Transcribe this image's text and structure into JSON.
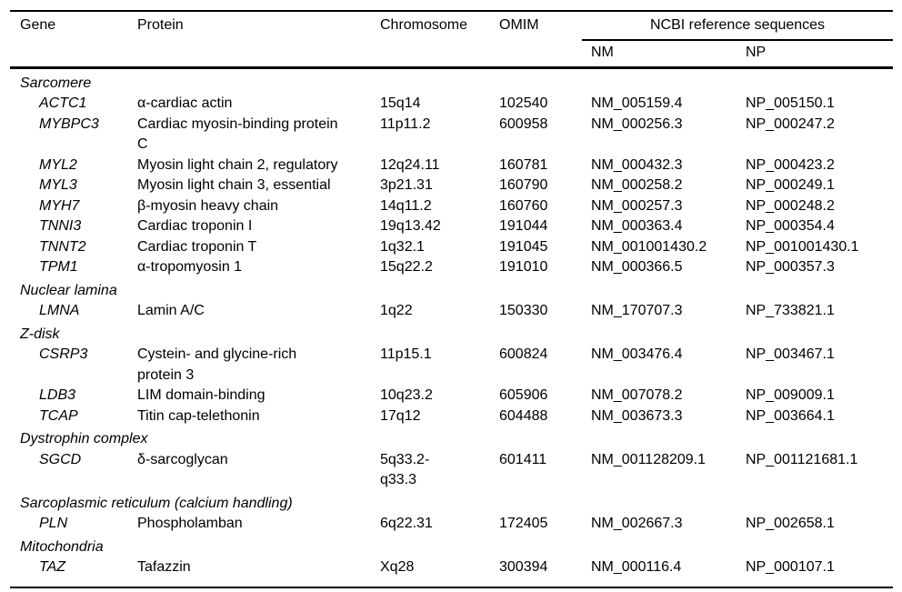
{
  "colors": {
    "text": "#000000",
    "background": "#ffffff",
    "rule": "#000000"
  },
  "table": {
    "headers": {
      "gene": "Gene",
      "protein": "Protein",
      "chromosome": "Chromosome",
      "omim": "OMIM",
      "ncbi_group": "NCBI reference sequences",
      "nm": "NM",
      "np": "NP"
    },
    "sections": [
      {
        "name": "Sarcomere",
        "rows": [
          {
            "gene": "ACTC1",
            "protein": "α-cardiac actin",
            "chromosome": "15q14",
            "omim": "102540",
            "nm": "NM_005159.4",
            "np": "NP_005150.1"
          },
          {
            "gene": "MYBPC3",
            "protein": "Cardiac myosin-binding protein\nC",
            "chromosome": "11p11.2",
            "omim": "600958",
            "nm": "NM_000256.3",
            "np": "NP_000247.2"
          },
          {
            "gene": "MYL2",
            "protein": "Myosin light chain 2, regulatory",
            "chromosome": "12q24.11",
            "omim": "160781",
            "nm": "NM_000432.3",
            "np": "NP_000423.2"
          },
          {
            "gene": "MYL3",
            "protein": "Myosin light chain 3, essential",
            "chromosome": "3p21.31",
            "omim": "160790",
            "nm": "NM_000258.2",
            "np": "NP_000249.1"
          },
          {
            "gene": "MYH7",
            "protein": "β-myosin heavy chain",
            "chromosome": "14q11.2",
            "omim": "160760",
            "nm": "NM_000257.3",
            "np": "NP_000248.2"
          },
          {
            "gene": "TNNI3",
            "protein": "Cardiac troponin I",
            "chromosome": "19q13.42",
            "omim": "191044",
            "nm": "NM_000363.4",
            "np": "NP_000354.4"
          },
          {
            "gene": "TNNT2",
            "protein": "Cardiac troponin T",
            "chromosome": "1q32.1",
            "omim": "191045",
            "nm": "NM_001001430.2",
            "np": "NP_001001430.1"
          },
          {
            "gene": "TPM1",
            "protein": "α-tropomyosin 1",
            "chromosome": "15q22.2",
            "omim": "191010",
            "nm": "NM_000366.5",
            "np": "NP_000357.3"
          }
        ]
      },
      {
        "name": "Nuclear lamina",
        "rows": [
          {
            "gene": "LMNA",
            "protein": "Lamin A/C",
            "chromosome": "1q22",
            "omim": "150330",
            "nm": "NM_170707.3",
            "np": "NP_733821.1"
          }
        ]
      },
      {
        "name": "Z-disk",
        "rows": [
          {
            "gene": "CSRP3",
            "protein": "Cystein- and glycine-rich\nprotein 3",
            "chromosome": "11p15.1",
            "omim": "600824",
            "nm": "NM_003476.4",
            "np": "NP_003467.1"
          },
          {
            "gene": "LDB3",
            "protein": "LIM domain-binding",
            "chromosome": "10q23.2",
            "omim": "605906",
            "nm": "NM_007078.2",
            "np": "NP_009009.1"
          },
          {
            "gene": "TCAP",
            "protein": "Titin cap-telethonin",
            "chromosome": "17q12",
            "omim": "604488",
            "nm": "NM_003673.3",
            "np": "NP_003664.1"
          }
        ]
      },
      {
        "name": "Dystrophin complex",
        "rows": [
          {
            "gene": "SGCD",
            "protein": "δ-sarcoglycan",
            "chromosome": "5q33.2-\nq33.3",
            "omim": "601411",
            "nm": "NM_001128209.1",
            "np": "NP_001121681.1"
          }
        ]
      },
      {
        "name": "Sarcoplasmic reticulum (calcium handling)",
        "rows": [
          {
            "gene": "PLN",
            "protein": "Phospholamban",
            "chromosome": "6q22.31",
            "omim": "172405",
            "nm": "NM_002667.3",
            "np": "NP_002658.1"
          }
        ]
      },
      {
        "name": "Mitochondria",
        "rows": [
          {
            "gene": "TAZ",
            "protein": "Tafazzin",
            "chromosome": "Xq28",
            "omim": "300394",
            "nm": "NM_000116.4",
            "np": "NP_000107.1"
          }
        ]
      }
    ]
  }
}
